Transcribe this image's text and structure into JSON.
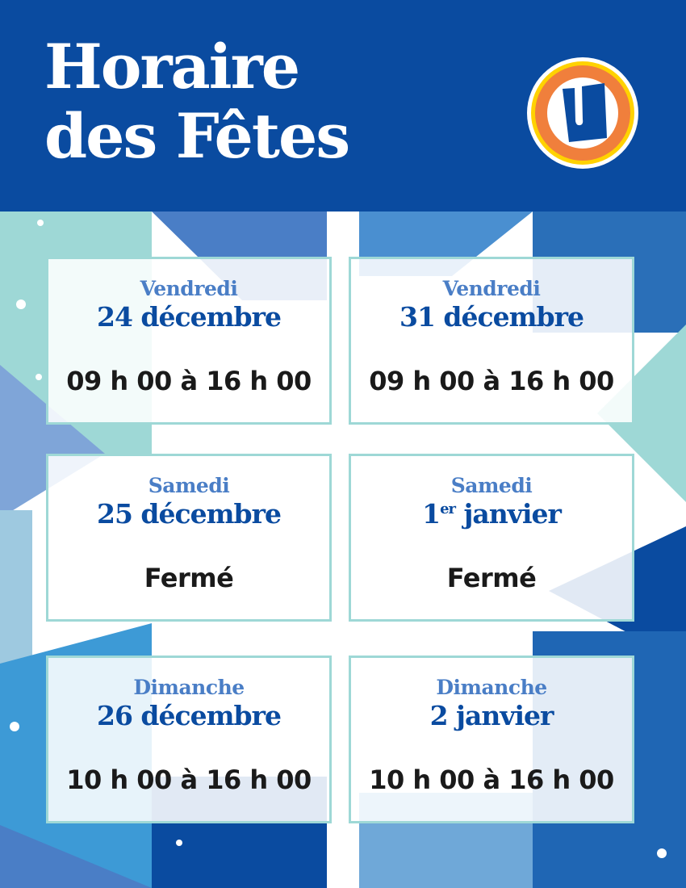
{
  "header": {
    "title_line1": "Horaire",
    "title_line2": "des Fêtes",
    "logo_letter": "U"
  },
  "colors": {
    "brand_blue": "#0a4ba0",
    "day_blue": "#4a7ec6",
    "teal": "#9ed8d6",
    "logo_orange": "#f07f3c",
    "logo_yellow": "#ffd200"
  },
  "schedule": [
    {
      "day": "Vendredi",
      "date": "24 décembre",
      "date_sup": "",
      "date_rest": "",
      "hours": "09 h 00 à 16 h 00"
    },
    {
      "day": "Vendredi",
      "date": "31 décembre",
      "date_sup": "",
      "date_rest": "",
      "hours": "09 h 00 à 16 h 00"
    },
    {
      "day": "Samedi",
      "date": "25 décembre",
      "date_sup": "",
      "date_rest": "",
      "hours": "Fermé"
    },
    {
      "day": "Samedi",
      "date": "1",
      "date_sup": "er",
      "date_rest": " janvier",
      "hours": "Fermé"
    },
    {
      "day": "Dimanche",
      "date": "26 décembre",
      "date_sup": "",
      "date_rest": "",
      "hours": "10 h 00 à 16 h 00"
    },
    {
      "day": "Dimanche",
      "date": "2 janvier",
      "date_sup": "",
      "date_rest": "",
      "hours": "10 h 00 à 16 h 00"
    }
  ]
}
